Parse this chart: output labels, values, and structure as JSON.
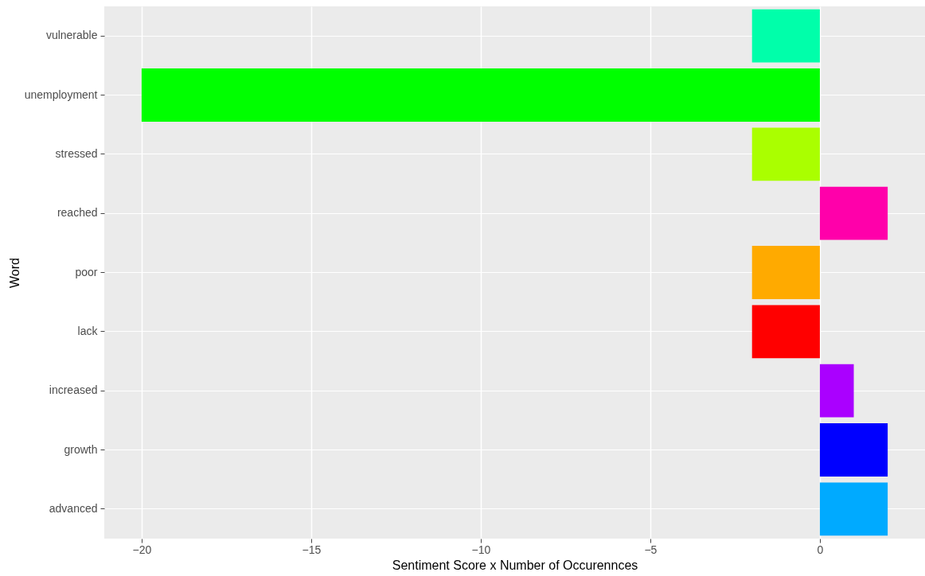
{
  "chart_data": {
    "type": "bar",
    "orientation": "horizontal",
    "xlabel": "Sentiment Score x Number of Occurennces",
    "ylabel": "Word",
    "categories": [
      "vulnerable",
      "unemployment",
      "stressed",
      "reached",
      "poor",
      "lack",
      "increased",
      "growth",
      "advanced"
    ],
    "values": [
      -2,
      -20,
      -2,
      2,
      -2,
      -2,
      1,
      2,
      2
    ],
    "colors": [
      "#00ffaa",
      "#00ff00",
      "#aaff00",
      "#ff00aa",
      "#ffaa00",
      "#ff0000",
      "#aa00ff",
      "#0000ff",
      "#00aaff"
    ],
    "xlim": [
      -21.1,
      3.1
    ],
    "xticks": [
      -20,
      -15,
      -10,
      -5,
      0
    ],
    "grid": true,
    "legend": false
  }
}
